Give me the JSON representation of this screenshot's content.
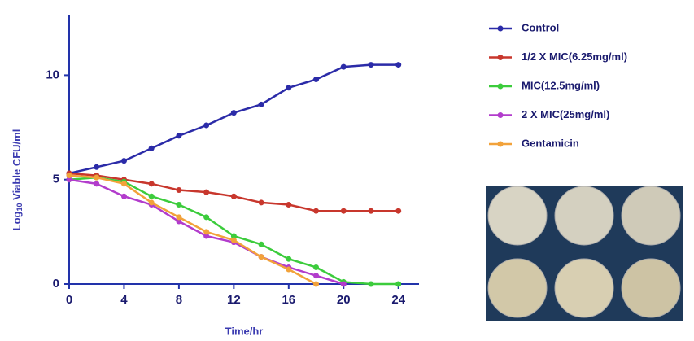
{
  "chart_data": {
    "type": "line",
    "x_label": "Time/hr",
    "y_label_prefix": "Log",
    "y_label_sub": "10",
    "y_label_suffix": "Viable CFU/ml",
    "x": [
      0,
      2,
      4,
      6,
      8,
      10,
      12,
      14,
      16,
      18,
      20,
      22,
      24
    ],
    "series": [
      {
        "name": "Control",
        "color": "#2b2ba8",
        "values": [
          5.3,
          5.6,
          5.9,
          6.5,
          7.1,
          7.6,
          8.2,
          8.6,
          9.4,
          9.8,
          10.4,
          10.5,
          10.5
        ]
      },
      {
        "name": "1/2 X MIC(6.25mg/ml)",
        "color": "#c8372d",
        "values": [
          5.3,
          5.2,
          5.0,
          4.8,
          4.5,
          4.4,
          4.2,
          3.9,
          3.8,
          3.5,
          3.5,
          3.5,
          3.5
        ]
      },
      {
        "name": "MIC(12.5mg/ml)",
        "color": "#3ccc3c",
        "values": [
          5.0,
          5.1,
          4.9,
          4.2,
          3.8,
          3.2,
          2.3,
          1.9,
          1.2,
          0.8,
          0.1,
          0,
          0
        ]
      },
      {
        "name": "2 X MIC(25mg/ml)",
        "color": "#b23ccc",
        "values": [
          5.0,
          4.8,
          4.2,
          3.8,
          3.0,
          2.3,
          2.0,
          1.3,
          0.8,
          0.4,
          0,
          null,
          null
        ]
      },
      {
        "name": "Gentamicin",
        "color": "#f2a23a",
        "values": [
          5.2,
          5.1,
          4.8,
          3.9,
          3.2,
          2.5,
          2.1,
          1.3,
          0.7,
          0,
          null,
          null,
          null
        ]
      }
    ],
    "xlim": [
      0,
      25.5
    ],
    "ylim": [
      0,
      12.9
    ],
    "xticks": [
      0,
      4,
      8,
      12,
      16,
      20,
      24
    ],
    "yticks": [
      0,
      5,
      10
    ]
  }
}
